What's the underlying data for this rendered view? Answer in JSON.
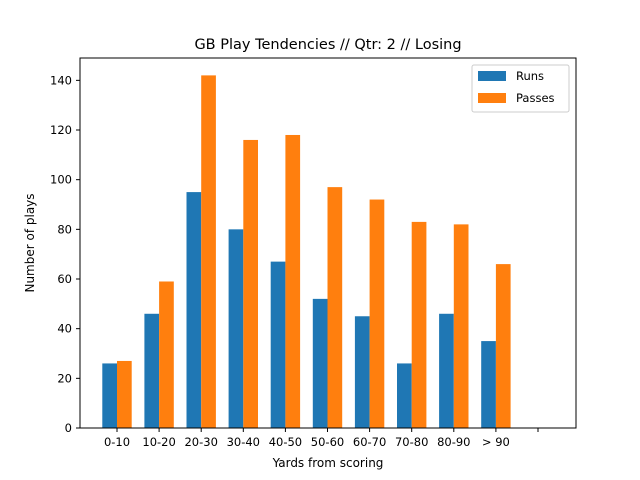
{
  "chart_data": {
    "type": "bar",
    "title": "GB Play Tendencies // Qtr: 2 // Losing",
    "xlabel": "Yards from scoring",
    "ylabel": "Number of plays",
    "categories": [
      "0-10",
      "10-20",
      "20-30",
      "30-40",
      "40-50",
      "50-60",
      "60-70",
      "70-80",
      "80-90",
      "> 90",
      ""
    ],
    "series": [
      {
        "name": "Runs",
        "color": "#1f77b4",
        "values": [
          26,
          46,
          95,
          80,
          67,
          52,
          45,
          26,
          46,
          35,
          null
        ]
      },
      {
        "name": "Passes",
        "color": "#ff7f0e",
        "values": [
          27,
          59,
          142,
          116,
          118,
          97,
          92,
          83,
          82,
          66,
          null
        ]
      }
    ],
    "ylim": [
      0,
      149
    ],
    "yticks": [
      0,
      20,
      40,
      60,
      80,
      100,
      120,
      140
    ],
    "grid": false,
    "legend_position": "top-right"
  }
}
